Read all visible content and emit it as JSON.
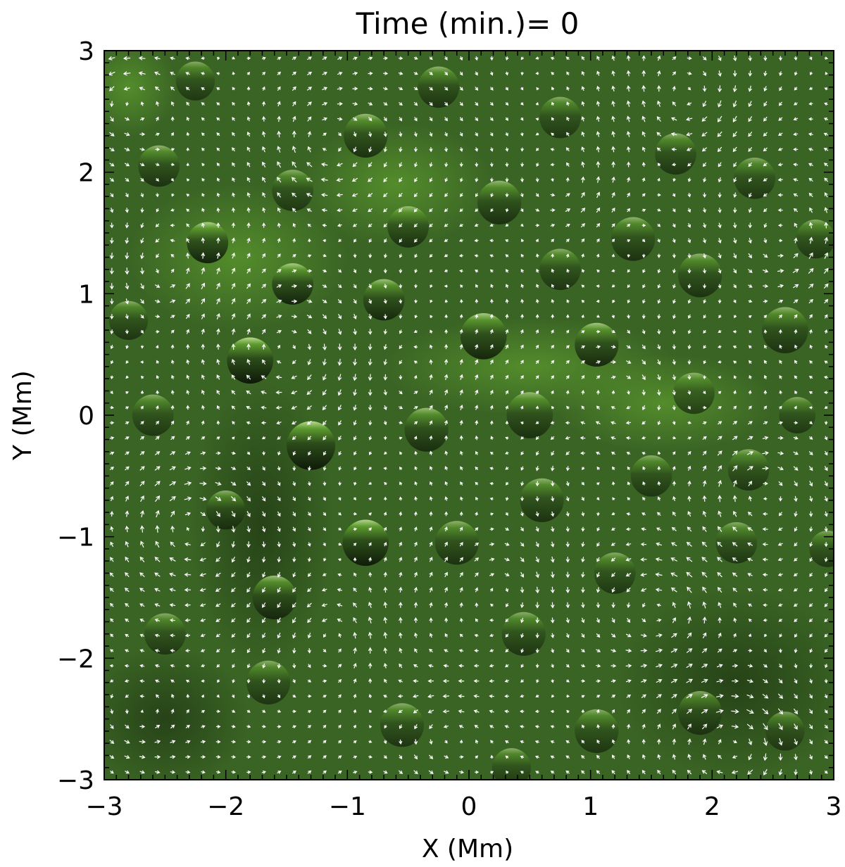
{
  "chart_data": {
    "type": "heatmap",
    "title": "Time (min.)= 0",
    "xlabel": "X (Mm)",
    "ylabel": "Y (Mm)",
    "xlim": [
      -3,
      3
    ],
    "ylim": [
      -3,
      3
    ],
    "x_ticks": [
      {
        "value": -3,
        "label": "−3"
      },
      {
        "value": -2,
        "label": "−2"
      },
      {
        "value": -1,
        "label": "−1"
      },
      {
        "value": 0,
        "label": "0"
      },
      {
        "value": 1,
        "label": "1"
      },
      {
        "value": 2,
        "label": "2"
      },
      {
        "value": 3,
        "label": "3"
      }
    ],
    "y_ticks": [
      {
        "value": -3,
        "label": "−3"
      },
      {
        "value": -2,
        "label": "−2"
      },
      {
        "value": -1,
        "label": "−1"
      },
      {
        "value": 0,
        "label": "0"
      },
      {
        "value": 1,
        "label": "1"
      },
      {
        "value": 2,
        "label": "2"
      },
      {
        "value": 3,
        "label": "3"
      }
    ],
    "minor_ticks_per_major": 10,
    "background_color": "#3a6424",
    "light_color": "#5c9a2e",
    "dark_color": "#0e1a08",
    "arrow_color": "#ffffff",
    "bright_regions": [
      {
        "x": -1.9,
        "y": 1.3,
        "rx": 0.9,
        "ry": 0.6
      },
      {
        "x": -0.6,
        "y": 1.9,
        "rx": 0.8,
        "ry": 0.5
      },
      {
        "x": 0.5,
        "y": 0.4,
        "rx": 1.2,
        "ry": 0.4
      },
      {
        "x": 1.6,
        "y": 0.1,
        "rx": 0.9,
        "ry": 0.4
      },
      {
        "x": -2.8,
        "y": 2.7,
        "rx": 0.4,
        "ry": 0.4
      }
    ],
    "dark_regions": [
      {
        "x": -1.7,
        "y": -0.9,
        "rx": 0.6,
        "ry": 1.2
      },
      {
        "x": 2.2,
        "y": -2.2,
        "rx": 1.0,
        "ry": 0.8
      },
      {
        "x": -2.5,
        "y": -2.5,
        "rx": 0.7,
        "ry": 0.6
      }
    ],
    "spots": [
      {
        "x": -1.8,
        "y": 0.45,
        "r": 0.19,
        "strength": 1.0
      },
      {
        "x": -1.3,
        "y": -0.25,
        "r": 0.2,
        "strength": 1.0
      },
      {
        "x": -0.85,
        "y": -1.05,
        "r": 0.19,
        "strength": 0.95
      },
      {
        "x": -2.15,
        "y": 1.42,
        "r": 0.17,
        "strength": 0.85
      },
      {
        "x": -1.45,
        "y": 1.08,
        "r": 0.17,
        "strength": 0.8
      },
      {
        "x": -0.7,
        "y": 0.95,
        "r": 0.17,
        "strength": 0.7
      },
      {
        "x": 0.12,
        "y": 0.65,
        "r": 0.19,
        "strength": 0.8
      },
      {
        "x": 1.05,
        "y": 0.58,
        "r": 0.18,
        "strength": 0.75
      },
      {
        "x": 0.5,
        "y": 0.0,
        "r": 0.19,
        "strength": 0.55
      },
      {
        "x": -0.35,
        "y": -0.12,
        "r": 0.18,
        "strength": 0.6
      },
      {
        "x": -1.6,
        "y": -1.5,
        "r": 0.18,
        "strength": 0.7
      },
      {
        "x": -2.0,
        "y": -0.78,
        "r": 0.16,
        "strength": 0.5
      },
      {
        "x": -0.85,
        "y": 2.3,
        "r": 0.18,
        "strength": 0.6
      },
      {
        "x": -0.25,
        "y": 2.7,
        "r": 0.17,
        "strength": 0.5
      },
      {
        "x": 0.25,
        "y": 1.75,
        "r": 0.18,
        "strength": 0.55
      },
      {
        "x": -0.5,
        "y": 1.55,
        "r": 0.17,
        "strength": 0.55
      },
      {
        "x": -2.55,
        "y": 2.05,
        "r": 0.17,
        "strength": 0.5
      },
      {
        "x": -2.25,
        "y": 2.75,
        "r": 0.16,
        "strength": 0.4
      },
      {
        "x": 1.35,
        "y": 1.45,
        "r": 0.18,
        "strength": 0.5
      },
      {
        "x": 1.9,
        "y": 1.15,
        "r": 0.18,
        "strength": 0.5
      },
      {
        "x": 2.6,
        "y": 0.7,
        "r": 0.19,
        "strength": 0.5
      },
      {
        "x": 1.85,
        "y": 0.18,
        "r": 0.17,
        "strength": 0.45
      },
      {
        "x": 2.7,
        "y": 0.0,
        "r": 0.15,
        "strength": 0.4
      },
      {
        "x": 0.75,
        "y": 1.2,
        "r": 0.17,
        "strength": 0.45
      },
      {
        "x": 1.5,
        "y": -0.5,
        "r": 0.17,
        "strength": 0.45
      },
      {
        "x": 0.6,
        "y": -0.7,
        "r": 0.18,
        "strength": 0.5
      },
      {
        "x": -0.1,
        "y": -1.05,
        "r": 0.18,
        "strength": 0.5
      },
      {
        "x": 0.45,
        "y": -1.8,
        "r": 0.18,
        "strength": 0.45
      },
      {
        "x": 1.2,
        "y": -1.3,
        "r": 0.17,
        "strength": 0.4
      },
      {
        "x": 2.3,
        "y": -0.45,
        "r": 0.17,
        "strength": 0.4
      },
      {
        "x": 2.2,
        "y": -1.05,
        "r": 0.17,
        "strength": 0.4
      },
      {
        "x": 1.9,
        "y": -2.45,
        "r": 0.18,
        "strength": 0.45
      },
      {
        "x": 1.05,
        "y": -2.6,
        "r": 0.18,
        "strength": 0.45
      },
      {
        "x": 0.35,
        "y": -2.9,
        "r": 0.16,
        "strength": 0.45
      },
      {
        "x": -0.55,
        "y": -2.55,
        "r": 0.18,
        "strength": 0.45
      },
      {
        "x": -1.65,
        "y": -2.2,
        "r": 0.18,
        "strength": 0.45
      },
      {
        "x": -2.5,
        "y": -1.8,
        "r": 0.17,
        "strength": 0.4
      },
      {
        "x": -2.6,
        "y": 0.0,
        "r": 0.17,
        "strength": 0.4
      },
      {
        "x": -2.8,
        "y": 0.78,
        "r": 0.16,
        "strength": 0.45
      },
      {
        "x": -1.45,
        "y": 1.85,
        "r": 0.17,
        "strength": 0.45
      },
      {
        "x": 2.35,
        "y": 1.95,
        "r": 0.17,
        "strength": 0.4
      },
      {
        "x": 1.7,
        "y": 2.15,
        "r": 0.17,
        "strength": 0.45
      },
      {
        "x": 0.75,
        "y": 2.45,
        "r": 0.17,
        "strength": 0.4
      },
      {
        "x": 2.85,
        "y": 1.45,
        "r": 0.16,
        "strength": 0.4
      },
      {
        "x": 2.6,
        "y": -2.6,
        "r": 0.16,
        "strength": 0.35
      },
      {
        "x": 2.95,
        "y": -1.1,
        "r": 0.15,
        "strength": 0.35
      }
    ],
    "vortices": [
      {
        "x": -2.5,
        "y": 1.2,
        "s": 1.0
      },
      {
        "x": -1.2,
        "y": 2.2,
        "s": -0.9
      },
      {
        "x": 0.8,
        "y": 1.9,
        "s": 0.8
      },
      {
        "x": 1.8,
        "y": 2.6,
        "s": -1.0
      },
      {
        "x": 2.6,
        "y": 1.4,
        "s": 0.9
      },
      {
        "x": -0.5,
        "y": 0.3,
        "s": 0.7
      },
      {
        "x": 1.3,
        "y": 0.2,
        "s": -0.8
      },
      {
        "x": -2.3,
        "y": -0.9,
        "s": -1.1
      },
      {
        "x": -1.1,
        "y": -1.8,
        "s": 0.9
      },
      {
        "x": 0.3,
        "y": -1.4,
        "s": -0.7
      },
      {
        "x": 1.6,
        "y": -1.6,
        "s": 1.0
      },
      {
        "x": 2.4,
        "y": -0.6,
        "s": -0.9
      },
      {
        "x": -0.2,
        "y": -2.6,
        "s": 0.8
      },
      {
        "x": 2.2,
        "y": -2.7,
        "s": -1.2
      },
      {
        "x": -2.7,
        "y": -2.5,
        "s": 0.9
      },
      {
        "x": 0.9,
        "y": -0.4,
        "s": 0.6
      },
      {
        "x": -1.5,
        "y": 0.5,
        "s": -0.7
      },
      {
        "x": -2.8,
        "y": 2.6,
        "s": 1.1
      }
    ]
  }
}
